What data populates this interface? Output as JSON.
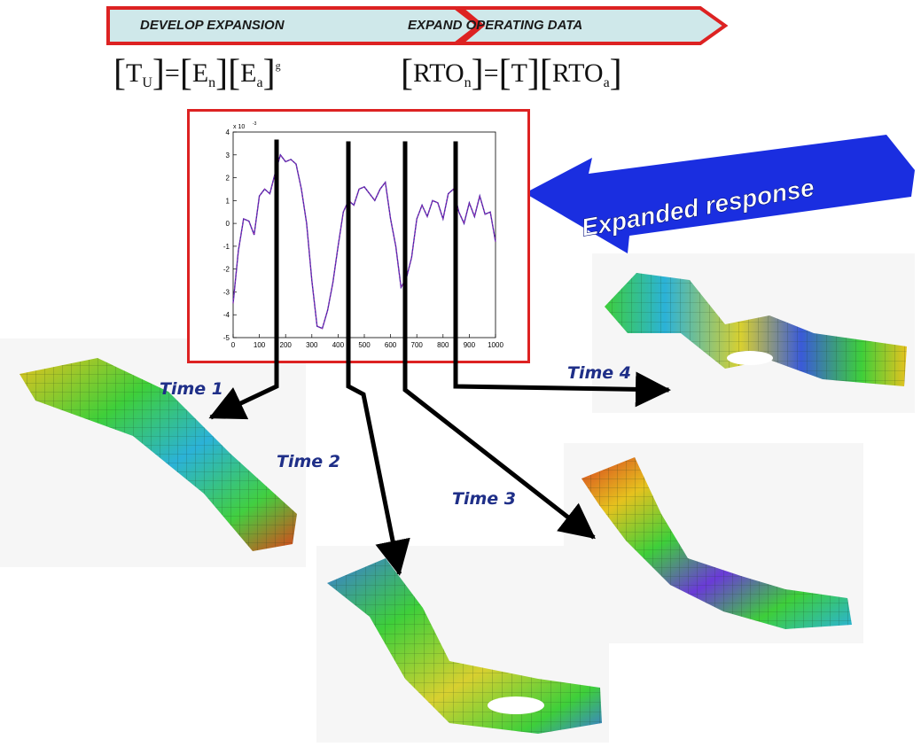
{
  "steps": {
    "develop": "DEVELOP EXPANSION",
    "expand": "EXPAND OPERATING DATA"
  },
  "equations": {
    "left": {
      "T": "T",
      "T_sub": "U",
      "E1": "E",
      "E1_sub": "n",
      "E2": "E",
      "E2_sub": "a",
      "sup": "g"
    },
    "right": {
      "RTO1": "RTO",
      "RTO1_sub": "n",
      "T": "T",
      "RTO2": "RTO",
      "RTO2_sub": "a"
    }
  },
  "callout": {
    "text": "Expanded response",
    "color": "#1a2ee0"
  },
  "time_labels": [
    "Time 1",
    "Time 2",
    "Time 3",
    "Time 4"
  ],
  "colors": {
    "frame": "#dd2222",
    "step_fill": "#cfe8ea",
    "signal": "#4422aa",
    "time_text": "#1f2f88"
  },
  "chart_data": {
    "type": "line",
    "exponent_label": "x 10",
    "exponent_power": "-3",
    "xlim": [
      0,
      1000
    ],
    "ylim": [
      -5,
      4
    ],
    "xticks": [
      "0",
      "100",
      "200",
      "300",
      "400",
      "500",
      "600",
      "700",
      "800",
      "900",
      "1000"
    ],
    "yticks": [
      "4",
      "3",
      "2",
      "1",
      "0",
      "-1",
      "-2",
      "-3",
      "-4",
      "-5"
    ],
    "x": [
      0,
      20,
      40,
      60,
      80,
      100,
      120,
      140,
      160,
      180,
      200,
      220,
      240,
      260,
      280,
      300,
      320,
      340,
      360,
      380,
      400,
      420,
      440,
      460,
      480,
      500,
      520,
      540,
      560,
      580,
      600,
      620,
      640,
      660,
      680,
      700,
      720,
      740,
      760,
      780,
      800,
      820,
      840,
      860,
      880,
      900,
      920,
      940,
      960,
      980,
      1000
    ],
    "series": [
      {
        "values": [
          -3.5,
          -1.2,
          0.2,
          0.1,
          -0.5,
          1.2,
          1.5,
          1.3,
          2.2,
          3.0,
          2.7,
          2.8,
          2.6,
          1.5,
          0.0,
          -2.5,
          -4.5,
          -4.6,
          -3.8,
          -2.6,
          -1.0,
          0.5,
          1.0,
          0.8,
          1.5,
          1.6,
          1.3,
          1.0,
          1.5,
          1.8,
          0.2,
          -1.0,
          -2.8,
          -2.4,
          -1.5,
          0.2,
          0.8,
          0.3,
          1.0,
          0.9,
          0.2,
          1.3,
          1.5,
          0.5,
          0.0,
          0.9,
          0.3,
          1.2,
          0.4,
          0.5,
          -0.8
        ]
      }
    ],
    "time_markers_x": [
      170,
      440,
      650,
      850
    ]
  }
}
